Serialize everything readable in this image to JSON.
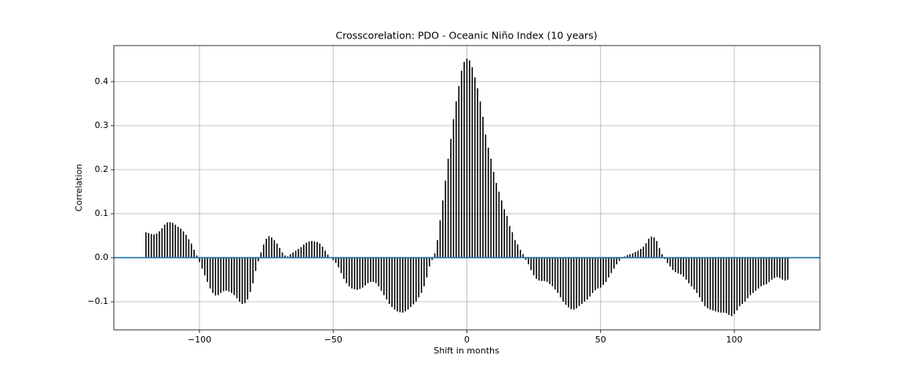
{
  "chart_data": {
    "type": "xcorr",
    "title": "Crosscorelation: PDO - Oceanic Niño Index (10 years)",
    "xlabel": "Shift in months",
    "ylabel": "Correlation",
    "color": "#000000",
    "baseline_color": "#1f77b4",
    "grid": true,
    "xlim": [
      -132,
      132
    ],
    "ylim": [
      -0.164,
      0.482
    ],
    "xticks": [
      {
        "value": -100,
        "label": "−100"
      },
      {
        "value": -50,
        "label": "−50"
      },
      0,
      50,
      100
    ],
    "yticks": [
      {
        "value": -0.1,
        "label": "−0.1"
      },
      {
        "value": 0,
        "label": "0.0"
      },
      0.1,
      0.2,
      0.3,
      0.4
    ],
    "x": [
      -120,
      -119,
      -118,
      -117,
      -116,
      -115,
      -114,
      -113,
      -112,
      -111,
      -110,
      -109,
      -108,
      -107,
      -106,
      -105,
      -104,
      -103,
      -102,
      -101,
      -100,
      -99,
      -98,
      -97,
      -96,
      -95,
      -94,
      -93,
      -92,
      -91,
      -90,
      -89,
      -88,
      -87,
      -86,
      -85,
      -84,
      -83,
      -82,
      -81,
      -80,
      -79,
      -78,
      -77,
      -76,
      -75,
      -74,
      -73,
      -72,
      -71,
      -70,
      -69,
      -68,
      -67,
      -66,
      -65,
      -64,
      -63,
      -62,
      -61,
      -60,
      -59,
      -58,
      -57,
      -56,
      -55,
      -54,
      -53,
      -52,
      -51,
      -50,
      -49,
      -48,
      -47,
      -46,
      -45,
      -44,
      -43,
      -42,
      -41,
      -40,
      -39,
      -38,
      -37,
      -36,
      -35,
      -34,
      -33,
      -32,
      -31,
      -30,
      -29,
      -28,
      -27,
      -26,
      -25,
      -24,
      -23,
      -22,
      -21,
      -20,
      -19,
      -18,
      -17,
      -16,
      -15,
      -14,
      -13,
      -12,
      -11,
      -10,
      -9,
      -8,
      -7,
      -6,
      -5,
      -4,
      -3,
      -2,
      -1,
      0,
      1,
      2,
      3,
      4,
      5,
      6,
      7,
      8,
      9,
      10,
      11,
      12,
      13,
      14,
      15,
      16,
      17,
      18,
      19,
      20,
      21,
      22,
      23,
      24,
      25,
      26,
      27,
      28,
      29,
      30,
      31,
      32,
      33,
      34,
      35,
      36,
      37,
      38,
      39,
      40,
      41,
      42,
      43,
      44,
      45,
      46,
      47,
      48,
      49,
      50,
      51,
      52,
      53,
      54,
      55,
      56,
      57,
      58,
      59,
      60,
      61,
      62,
      63,
      64,
      65,
      66,
      67,
      68,
      69,
      70,
      71,
      72,
      73,
      74,
      75,
      76,
      77,
      78,
      79,
      80,
      81,
      82,
      83,
      84,
      85,
      86,
      87,
      88,
      89,
      90,
      91,
      92,
      93,
      94,
      95,
      96,
      97,
      98,
      99,
      100,
      101,
      102,
      103,
      104,
      105,
      106,
      107,
      108,
      109,
      110,
      111,
      112,
      113,
      114,
      115,
      116,
      117,
      118,
      119,
      120
    ],
    "values": [
      0.058,
      0.056,
      0.054,
      0.053,
      0.055,
      0.06,
      0.067,
      0.075,
      0.08,
      0.081,
      0.079,
      0.075,
      0.07,
      0.066,
      0.06,
      0.052,
      0.042,
      0.032,
      0.018,
      0.005,
      -0.01,
      -0.025,
      -0.04,
      -0.055,
      -0.07,
      -0.08,
      -0.086,
      -0.085,
      -0.08,
      -0.076,
      -0.075,
      -0.077,
      -0.08,
      -0.085,
      -0.092,
      -0.1,
      -0.105,
      -0.103,
      -0.095,
      -0.078,
      -0.058,
      -0.03,
      -0.008,
      0.012,
      0.03,
      0.043,
      0.049,
      0.046,
      0.04,
      0.032,
      0.022,
      0.012,
      0.005,
      0.003,
      0.008,
      0.012,
      0.016,
      0.02,
      0.024,
      0.03,
      0.034,
      0.037,
      0.038,
      0.037,
      0.036,
      0.032,
      0.025,
      0.016,
      0.007,
      0.001,
      -0.005,
      -0.012,
      -0.022,
      -0.035,
      -0.048,
      -0.058,
      -0.065,
      -0.07,
      -0.072,
      -0.073,
      -0.071,
      -0.068,
      -0.063,
      -0.058,
      -0.055,
      -0.055,
      -0.058,
      -0.065,
      -0.075,
      -0.085,
      -0.095,
      -0.105,
      -0.112,
      -0.118,
      -0.122,
      -0.124,
      -0.125,
      -0.122,
      -0.118,
      -0.112,
      -0.106,
      -0.1,
      -0.09,
      -0.08,
      -0.065,
      -0.045,
      -0.02,
      -0.005,
      0.01,
      0.04,
      0.085,
      0.13,
      0.175,
      0.225,
      0.27,
      0.315,
      0.355,
      0.39,
      0.425,
      0.445,
      0.452,
      0.448,
      0.433,
      0.41,
      0.385,
      0.355,
      0.32,
      0.28,
      0.25,
      0.225,
      0.195,
      0.17,
      0.15,
      0.13,
      0.11,
      0.095,
      0.072,
      0.058,
      0.04,
      0.03,
      0.018,
      0.008,
      -0.005,
      -0.015,
      -0.028,
      -0.04,
      -0.048,
      -0.052,
      -0.053,
      -0.053,
      -0.055,
      -0.06,
      -0.065,
      -0.072,
      -0.08,
      -0.09,
      -0.1,
      -0.107,
      -0.113,
      -0.117,
      -0.118,
      -0.115,
      -0.11,
      -0.105,
      -0.1,
      -0.095,
      -0.088,
      -0.08,
      -0.074,
      -0.07,
      -0.068,
      -0.062,
      -0.055,
      -0.045,
      -0.035,
      -0.025,
      -0.015,
      -0.007,
      -0.002,
      0.003,
      0.006,
      0.008,
      0.01,
      0.013,
      0.016,
      0.02,
      0.025,
      0.033,
      0.043,
      0.048,
      0.046,
      0.038,
      0.022,
      0.008,
      -0.003,
      -0.012,
      -0.02,
      -0.028,
      -0.033,
      -0.036,
      -0.038,
      -0.043,
      -0.05,
      -0.058,
      -0.065,
      -0.072,
      -0.08,
      -0.09,
      -0.1,
      -0.11,
      -0.115,
      -0.118,
      -0.12,
      -0.122,
      -0.124,
      -0.125,
      -0.125,
      -0.126,
      -0.13,
      -0.133,
      -0.128,
      -0.12,
      -0.11,
      -0.105,
      -0.1,
      -0.092,
      -0.085,
      -0.08,
      -0.075,
      -0.07,
      -0.065,
      -0.062,
      -0.06,
      -0.055,
      -0.05,
      -0.046,
      -0.044,
      -0.046,
      -0.05,
      -0.052,
      -0.05
    ]
  }
}
